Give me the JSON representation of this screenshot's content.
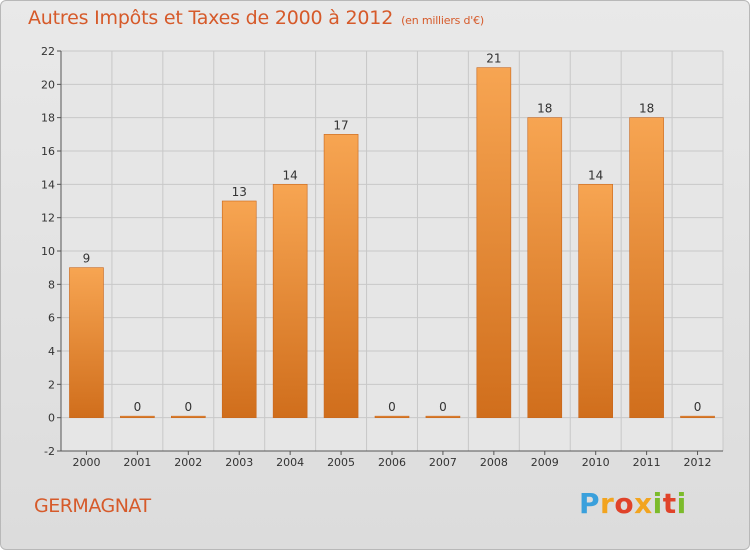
{
  "header": {
    "title": "Autres Impôts et Taxes de 2000 à 2012",
    "unit": "(en milliers d'€)"
  },
  "footer": {
    "place": "GERMAGNAT",
    "logo": [
      "P",
      "r",
      "o",
      "x",
      "i",
      "t",
      "i"
    ]
  },
  "colors": {
    "bar_top": "#f7a552",
    "bar_bottom": "#d06e1c",
    "title": "#d65a2a",
    "grid": "#c8c8c8",
    "axis_text": "#333333"
  },
  "chart_data": {
    "type": "bar",
    "title": "Autres Impôts et Taxes de 2000 à 2012",
    "subtitle": "(en milliers d'€)",
    "categories": [
      "2000",
      "2001",
      "2002",
      "2003",
      "2004",
      "2005",
      "2006",
      "2007",
      "2008",
      "2009",
      "2010",
      "2011",
      "2012"
    ],
    "values": [
      9,
      0,
      0,
      13,
      14,
      17,
      0,
      0,
      21,
      18,
      14,
      18,
      0
    ],
    "ylim": [
      -2,
      22
    ],
    "yticks": [
      -2,
      0,
      2,
      4,
      6,
      8,
      10,
      12,
      14,
      16,
      18,
      20,
      22
    ],
    "grid": true,
    "data_labels": true
  }
}
